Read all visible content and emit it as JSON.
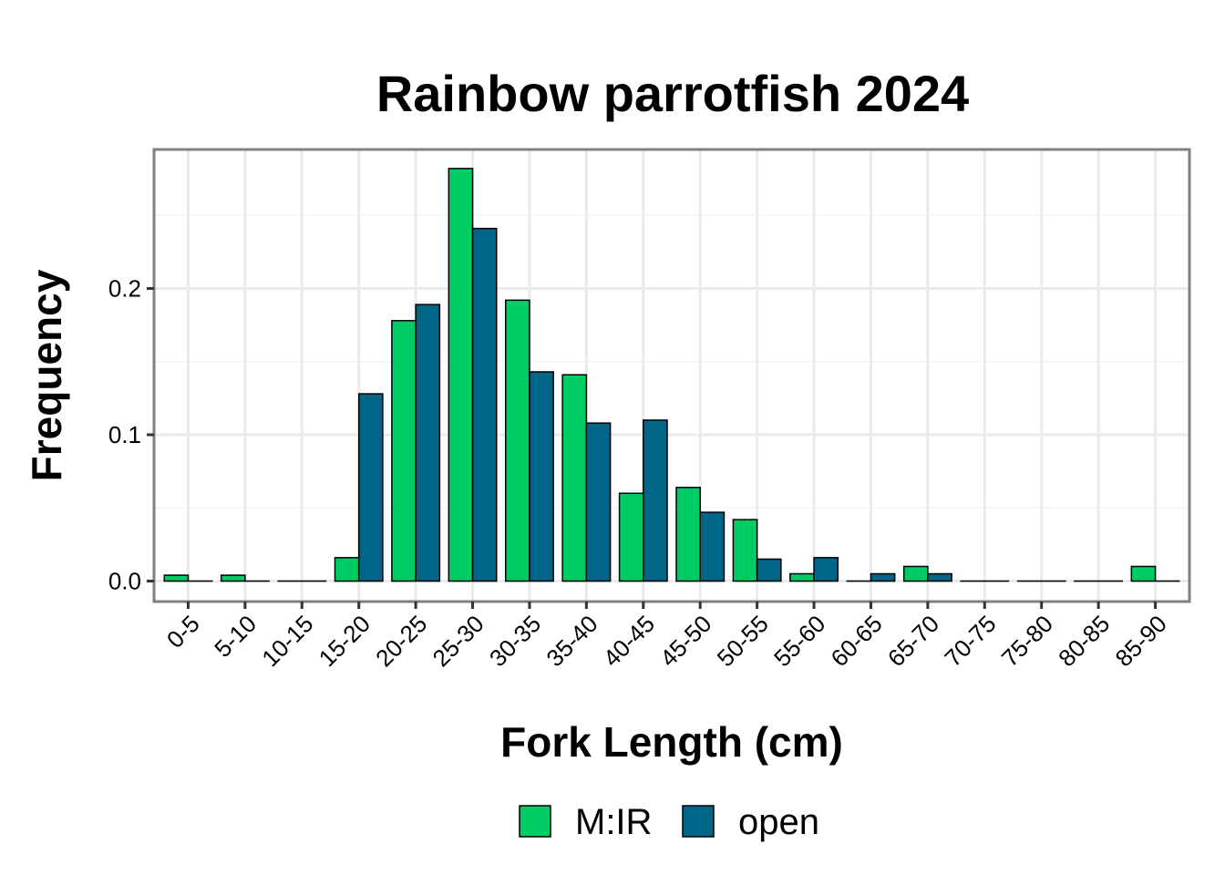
{
  "chart_data": {
    "type": "bar",
    "title": "Rainbow parrotfish 2024",
    "xlabel": "Fork Length (cm)",
    "ylabel": "Frequency",
    "categories": [
      "0-5",
      "5-10",
      "10-15",
      "15-20",
      "20-25",
      "25-30",
      "30-35",
      "35-40",
      "40-45",
      "45-50",
      "50-55",
      "55-60",
      "60-65",
      "65-70",
      "70-75",
      "75-80",
      "80-85",
      "85-90"
    ],
    "series": [
      {
        "name": "M:IR",
        "color": "#00cc66",
        "values": [
          0.004,
          0.004,
          0.0,
          0.016,
          0.178,
          0.282,
          0.192,
          0.141,
          0.06,
          0.064,
          0.042,
          0.005,
          0.0,
          0.01,
          0.0,
          0.0,
          0.0,
          0.01
        ]
      },
      {
        "name": "open",
        "color": "#006688",
        "values": [
          0.0,
          0.0,
          0.0,
          0.128,
          0.189,
          0.241,
          0.143,
          0.108,
          0.11,
          0.047,
          0.015,
          0.016,
          0.005,
          0.005,
          0.0,
          0.0,
          0.0,
          0.0
        ]
      }
    ],
    "ylim": [
      -0.014,
      0.295
    ],
    "yticks": [
      0.0,
      0.1,
      0.2
    ],
    "ytick_labels": [
      "0.0",
      "0.1",
      "0.2"
    ],
    "grid": true,
    "legend_position": "bottom"
  }
}
